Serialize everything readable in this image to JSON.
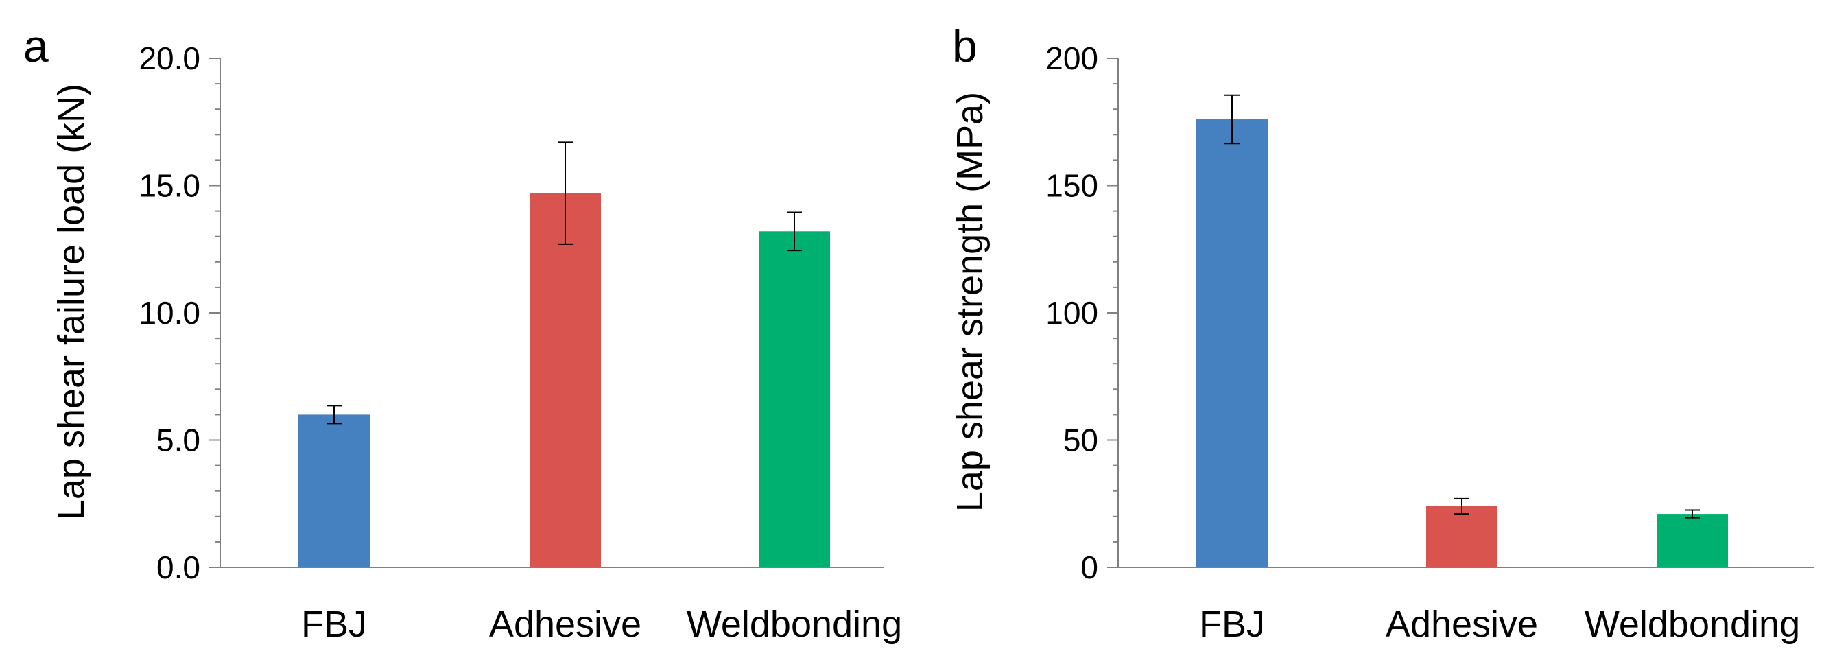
{
  "chart_data": [
    {
      "type": "bar",
      "panel_label": "a",
      "title": "",
      "xlabel": "",
      "ylabel": "Lap shear failure load (kN)",
      "categories": [
        "FBJ",
        "Adhesive",
        "Weldbonding"
      ],
      "values": [
        6.0,
        14.7,
        13.2
      ],
      "errors": [
        0.35,
        2.0,
        0.75
      ],
      "colors": [
        "#4580C0",
        "#D9534F",
        "#00B070"
      ],
      "ylim": [
        0,
        20
      ],
      "yticks": [
        "0.0",
        "5.0",
        "10.0",
        "15.0",
        "20.0"
      ],
      "minor_step": 1,
      "grid": false
    },
    {
      "type": "bar",
      "panel_label": "b",
      "title": "",
      "xlabel": "",
      "ylabel": "Lap shear strength (MPa)",
      "categories": [
        "FBJ",
        "Adhesive",
        "Weldbonding"
      ],
      "values": [
        176,
        24,
        21
      ],
      "errors": [
        9.5,
        3.0,
        1.5
      ],
      "colors": [
        "#4580C0",
        "#D9534F",
        "#00B070"
      ],
      "ylim": [
        0,
        200
      ],
      "yticks": [
        "0",
        "50",
        "100",
        "150",
        "200"
      ],
      "minor_step": 10,
      "grid": false
    }
  ]
}
